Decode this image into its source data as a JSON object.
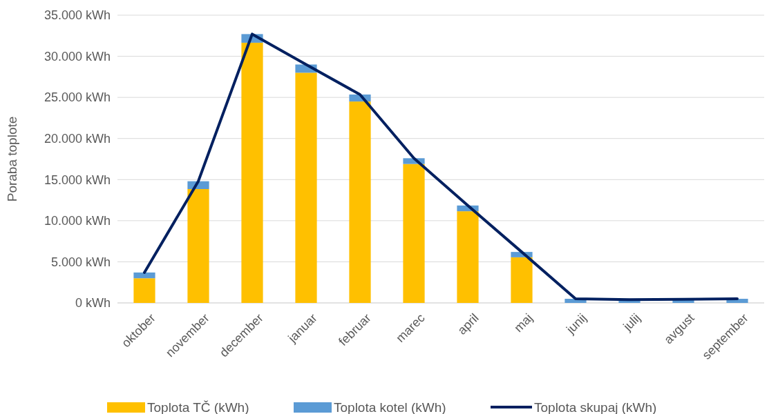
{
  "chart_data": {
    "type": "bar",
    "stacked": true,
    "ylabel": "Poraba toplote",
    "categories": [
      "oktober",
      "november",
      "december",
      "januar",
      "februar",
      "marec",
      "april",
      "maj",
      "junij",
      "julij",
      "avgust",
      "september"
    ],
    "series": [
      {
        "name": "Toplota TČ (kWh)",
        "color": "#ffc000",
        "values": [
          3000,
          13850,
          31650,
          28000,
          24500,
          16900,
          11150,
          5550,
          0,
          0,
          0,
          0
        ]
      },
      {
        "name": "Toplota kotel (kWh)",
        "color": "#5b9bd5",
        "values": [
          700,
          950,
          1050,
          1000,
          850,
          700,
          700,
          650,
          500,
          400,
          450,
          500
        ]
      },
      {
        "name": "Toplota skupaj (kWh)",
        "color": "#002060",
        "type": "line",
        "values": [
          3700,
          14800,
          32700,
          29000,
          25350,
          17600,
          11850,
          6200,
          500,
          400,
          450,
          500
        ]
      }
    ],
    "ylim": [
      0,
      35000
    ],
    "yticks": [
      {
        "value": 0,
        "label": "0 kWh"
      },
      {
        "value": 5000,
        "label": "5.000 kWh"
      },
      {
        "value": 10000,
        "label": "10.000 kWh"
      },
      {
        "value": 15000,
        "label": "15.000 kWh"
      },
      {
        "value": 20000,
        "label": "20.000 kWh"
      },
      {
        "value": 25000,
        "label": "25.000 kWh"
      },
      {
        "value": 30000,
        "label": "30.000 kWh"
      },
      {
        "value": 35000,
        "label": "35.000 kWh"
      }
    ],
    "grid": "y",
    "legend": "bottom"
  }
}
